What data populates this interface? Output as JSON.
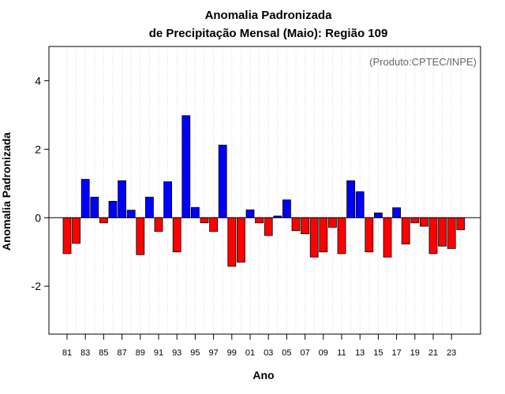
{
  "chart_data": {
    "type": "bar",
    "title": [
      "Anomalia Padronizada",
      "de Precipitação Mensal (Maio): Região 109"
    ],
    "xlabel": "Ano",
    "ylabel": "Anomalia Padronizada",
    "annotation": "(Produto:CPTEC/INPE)",
    "ylim": [
      -3.4,
      5.0
    ],
    "yticks": [
      -2,
      0,
      2,
      4
    ],
    "ytick_labels": [
      "-2",
      "0",
      "2",
      "4"
    ],
    "x_tick_labels": [
      "81",
      "83",
      "85",
      "87",
      "89",
      "91",
      "93",
      "95",
      "97",
      "99",
      "01",
      "03",
      "05",
      "07",
      "09",
      "11",
      "13",
      "15",
      "17",
      "19",
      "21",
      "23"
    ],
    "grid": "vertical dotted",
    "positive_color": "#0000ff",
    "negative_color": "#ff0000",
    "categories": [
      "1981",
      "1982",
      "1983",
      "1984",
      "1985",
      "1986",
      "1987",
      "1988",
      "1989",
      "1990",
      "1991",
      "1992",
      "1993",
      "1994",
      "1995",
      "1996",
      "1997",
      "1998",
      "1999",
      "2000",
      "2001",
      "2002",
      "2003",
      "2004",
      "2005",
      "2006",
      "2007",
      "2008",
      "2009",
      "2010",
      "2011",
      "2012",
      "2013",
      "2014",
      "2015",
      "2016",
      "2017",
      "2018",
      "2019",
      "2020",
      "2021",
      "2022",
      "2023",
      "2024"
    ],
    "values": [
      -1.05,
      -0.75,
      1.12,
      0.6,
      -0.15,
      0.48,
      1.08,
      0.22,
      -1.08,
      0.6,
      -0.4,
      1.05,
      -1.0,
      2.98,
      0.3,
      -0.15,
      -0.4,
      2.12,
      -1.42,
      -1.3,
      0.23,
      -0.15,
      -0.52,
      0.05,
      0.52,
      -0.38,
      -0.47,
      -1.15,
      -1.0,
      -0.28,
      -1.05,
      1.08,
      0.76,
      -1.0,
      0.14,
      -1.15,
      0.29,
      -0.77,
      -0.15,
      -0.25,
      -1.05,
      -0.83,
      -0.9,
      -0.35
    ]
  }
}
